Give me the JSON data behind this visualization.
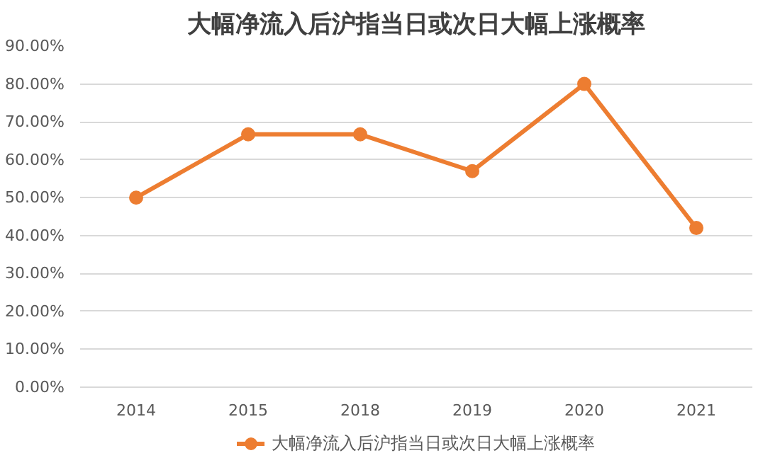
{
  "chart_data": {
    "type": "line",
    "title": "大幅净流入后沪指当日或次日大幅上涨概率",
    "categories": [
      "2014",
      "2015",
      "2018",
      "2019",
      "2020",
      "2021"
    ],
    "series": [
      {
        "name": "大幅净流入后沪指当日或次日大幅上涨概率",
        "color": "#ed7d31",
        "values": [
          50,
          66.7,
          66.7,
          57,
          80,
          42
        ]
      }
    ],
    "ylim": [
      0,
      90
    ],
    "yticks": [
      {
        "value": 0,
        "label": "0.00%"
      },
      {
        "value": 10,
        "label": "10.00%"
      },
      {
        "value": 20,
        "label": "20.00%"
      },
      {
        "value": 30,
        "label": "30.00%"
      },
      {
        "value": 40,
        "label": "40.00%"
      },
      {
        "value": 50,
        "label": "50.00%"
      },
      {
        "value": 60,
        "label": "60.00%"
      },
      {
        "value": 70,
        "label": "70.00%"
      },
      {
        "value": 80,
        "label": "80.00%"
      },
      {
        "value": 90,
        "label": "90.00%"
      }
    ],
    "grid": "y",
    "legend": "bottom",
    "marker": "circle",
    "line_style": "solid"
  }
}
